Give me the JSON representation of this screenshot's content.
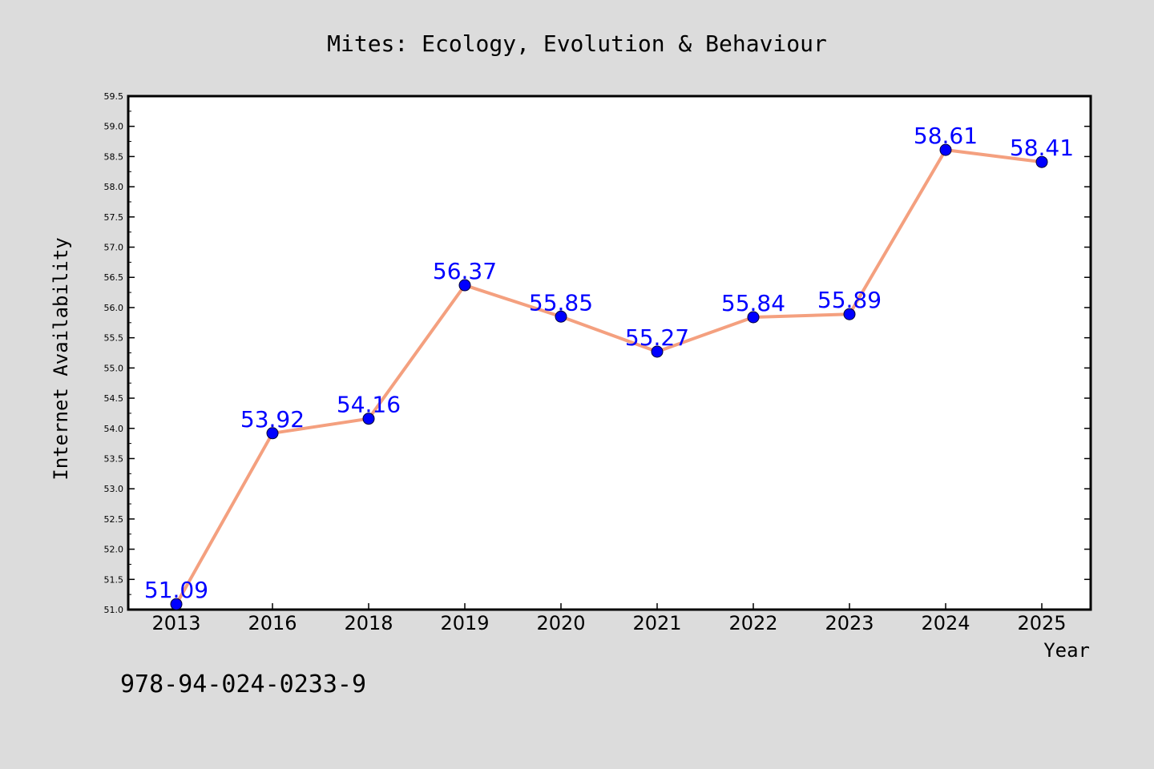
{
  "chart_data": {
    "type": "line",
    "title": "Mites: Ecology, Evolution & Behaviour",
    "xlabel": "Year",
    "ylabel": "Internet Availability",
    "categories": [
      "2013",
      "2016",
      "2018",
      "2019",
      "2020",
      "2021",
      "2022",
      "2023",
      "2024",
      "2025"
    ],
    "series": [
      {
        "values": [
          51.09,
          53.92,
          54.16,
          56.37,
          55.85,
          55.27,
          55.84,
          55.89,
          58.61,
          58.41
        ],
        "labels": [
          "51.09",
          "53.92",
          "54.16",
          "56.37",
          "55.85",
          "55.27",
          "55.84",
          "55.89",
          "58.61",
          "58.41"
        ]
      }
    ],
    "ylim": [
      51.0,
      59.5
    ],
    "yticks": [
      "51.0",
      "51.5",
      "52.0",
      "52.5",
      "53.0",
      "53.5",
      "54.0",
      "54.5",
      "55.0",
      "55.5",
      "56.0",
      "56.5",
      "57.0",
      "57.5",
      "58.0",
      "58.5",
      "59.0",
      "59.5"
    ],
    "grid": false,
    "legend": "none",
    "colors": {
      "line": "#f4a07f",
      "marker": "#0000ff",
      "label": "#0000ff",
      "background": "#dcdcdc",
      "plot_bg": "#ffffff",
      "frame": "#000000"
    }
  },
  "isbn": "978-94-024-0233-9"
}
